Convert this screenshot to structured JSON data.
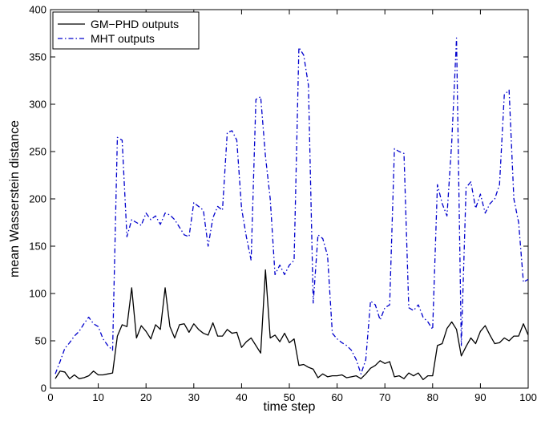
{
  "chart_data": {
    "type": "line",
    "xlabel": "time step",
    "ylabel": "mean Wasserstein distance",
    "xlim": [
      0,
      100
    ],
    "ylim": [
      0,
      400
    ],
    "xticks": [
      0,
      10,
      20,
      30,
      40,
      50,
      60,
      70,
      80,
      90,
      100
    ],
    "yticks": [
      0,
      50,
      100,
      150,
      200,
      250,
      300,
      350,
      400
    ],
    "grid": false,
    "legend_position": "top-left",
    "series": [
      {
        "name": "GM−PHD outputs",
        "color": "#000000",
        "style": "solid",
        "x": [
          1,
          2,
          3,
          4,
          5,
          6,
          7,
          8,
          9,
          10,
          11,
          12,
          13,
          14,
          15,
          16,
          17,
          18,
          19,
          20,
          21,
          22,
          23,
          24,
          25,
          26,
          27,
          28,
          29,
          30,
          31,
          32,
          33,
          34,
          35,
          36,
          37,
          38,
          39,
          40,
          41,
          42,
          43,
          44,
          45,
          46,
          47,
          48,
          49,
          50,
          51,
          52,
          53,
          54,
          55,
          56,
          57,
          58,
          59,
          60,
          61,
          62,
          63,
          64,
          65,
          66,
          67,
          68,
          69,
          70,
          71,
          72,
          73,
          74,
          75,
          76,
          77,
          78,
          79,
          80,
          81,
          82,
          83,
          84,
          85,
          86,
          87,
          88,
          89,
          90,
          91,
          92,
          93,
          94,
          95,
          96,
          97,
          98,
          99,
          100
        ],
        "y": [
          10,
          18,
          17,
          10,
          14,
          10,
          11,
          13,
          18,
          14,
          14,
          15,
          16,
          55,
          67,
          65,
          106,
          53,
          66,
          60,
          52,
          67,
          62,
          106,
          65,
          53,
          67,
          68,
          59,
          68,
          62,
          58,
          56,
          69,
          55,
          55,
          62,
          58,
          59,
          43,
          49,
          53,
          45,
          37,
          125,
          53,
          56,
          49,
          58,
          48,
          52,
          24,
          25,
          22,
          20,
          11,
          15,
          12,
          13,
          13,
          14,
          11,
          12,
          13,
          10,
          15,
          21,
          24,
          29,
          26,
          28,
          12,
          13,
          10,
          16,
          13,
          16,
          9,
          13,
          13,
          45,
          47,
          63,
          70,
          62,
          34,
          44,
          53,
          47,
          60,
          66,
          56,
          47,
          48,
          53,
          50,
          55,
          55,
          68,
          56
        ]
      },
      {
        "name": "MHT outputs",
        "color": "#0000cc",
        "style": "dash-dot",
        "x": [
          1,
          2,
          3,
          4,
          5,
          6,
          7,
          8,
          9,
          10,
          11,
          12,
          13,
          14,
          15,
          16,
          17,
          18,
          19,
          20,
          21,
          22,
          23,
          24,
          25,
          26,
          27,
          28,
          29,
          30,
          31,
          32,
          33,
          34,
          35,
          36,
          37,
          38,
          39,
          40,
          41,
          42,
          43,
          44,
          45,
          46,
          47,
          48,
          49,
          50,
          51,
          52,
          53,
          54,
          55,
          56,
          57,
          58,
          59,
          60,
          61,
          62,
          63,
          64,
          65,
          66,
          67,
          68,
          69,
          70,
          71,
          72,
          73,
          74,
          75,
          76,
          77,
          78,
          79,
          80,
          81,
          82,
          83,
          84,
          85,
          86,
          87,
          88,
          89,
          90,
          91,
          92,
          93,
          94,
          95,
          96,
          97,
          98,
          99,
          100
        ],
        "y": [
          15,
          28,
          42,
          48,
          55,
          60,
          68,
          75,
          68,
          65,
          52,
          45,
          40,
          265,
          262,
          160,
          178,
          175,
          172,
          185,
          178,
          182,
          173,
          185,
          183,
          178,
          170,
          162,
          160,
          196,
          192,
          188,
          150,
          180,
          192,
          188,
          270,
          272,
          262,
          190,
          160,
          135,
          305,
          308,
          245,
          200,
          120,
          130,
          120,
          130,
          135,
          360,
          352,
          320,
          90,
          162,
          158,
          140,
          58,
          52,
          48,
          45,
          40,
          30,
          15,
          30,
          92,
          88,
          72,
          85,
          88,
          253,
          250,
          248,
          85,
          82,
          88,
          75,
          70,
          62,
          215,
          195,
          182,
          260,
          370,
          45,
          212,
          218,
          190,
          205,
          185,
          195,
          200,
          215,
          310,
          315,
          200,
          175,
          112,
          115
        ]
      }
    ]
  }
}
